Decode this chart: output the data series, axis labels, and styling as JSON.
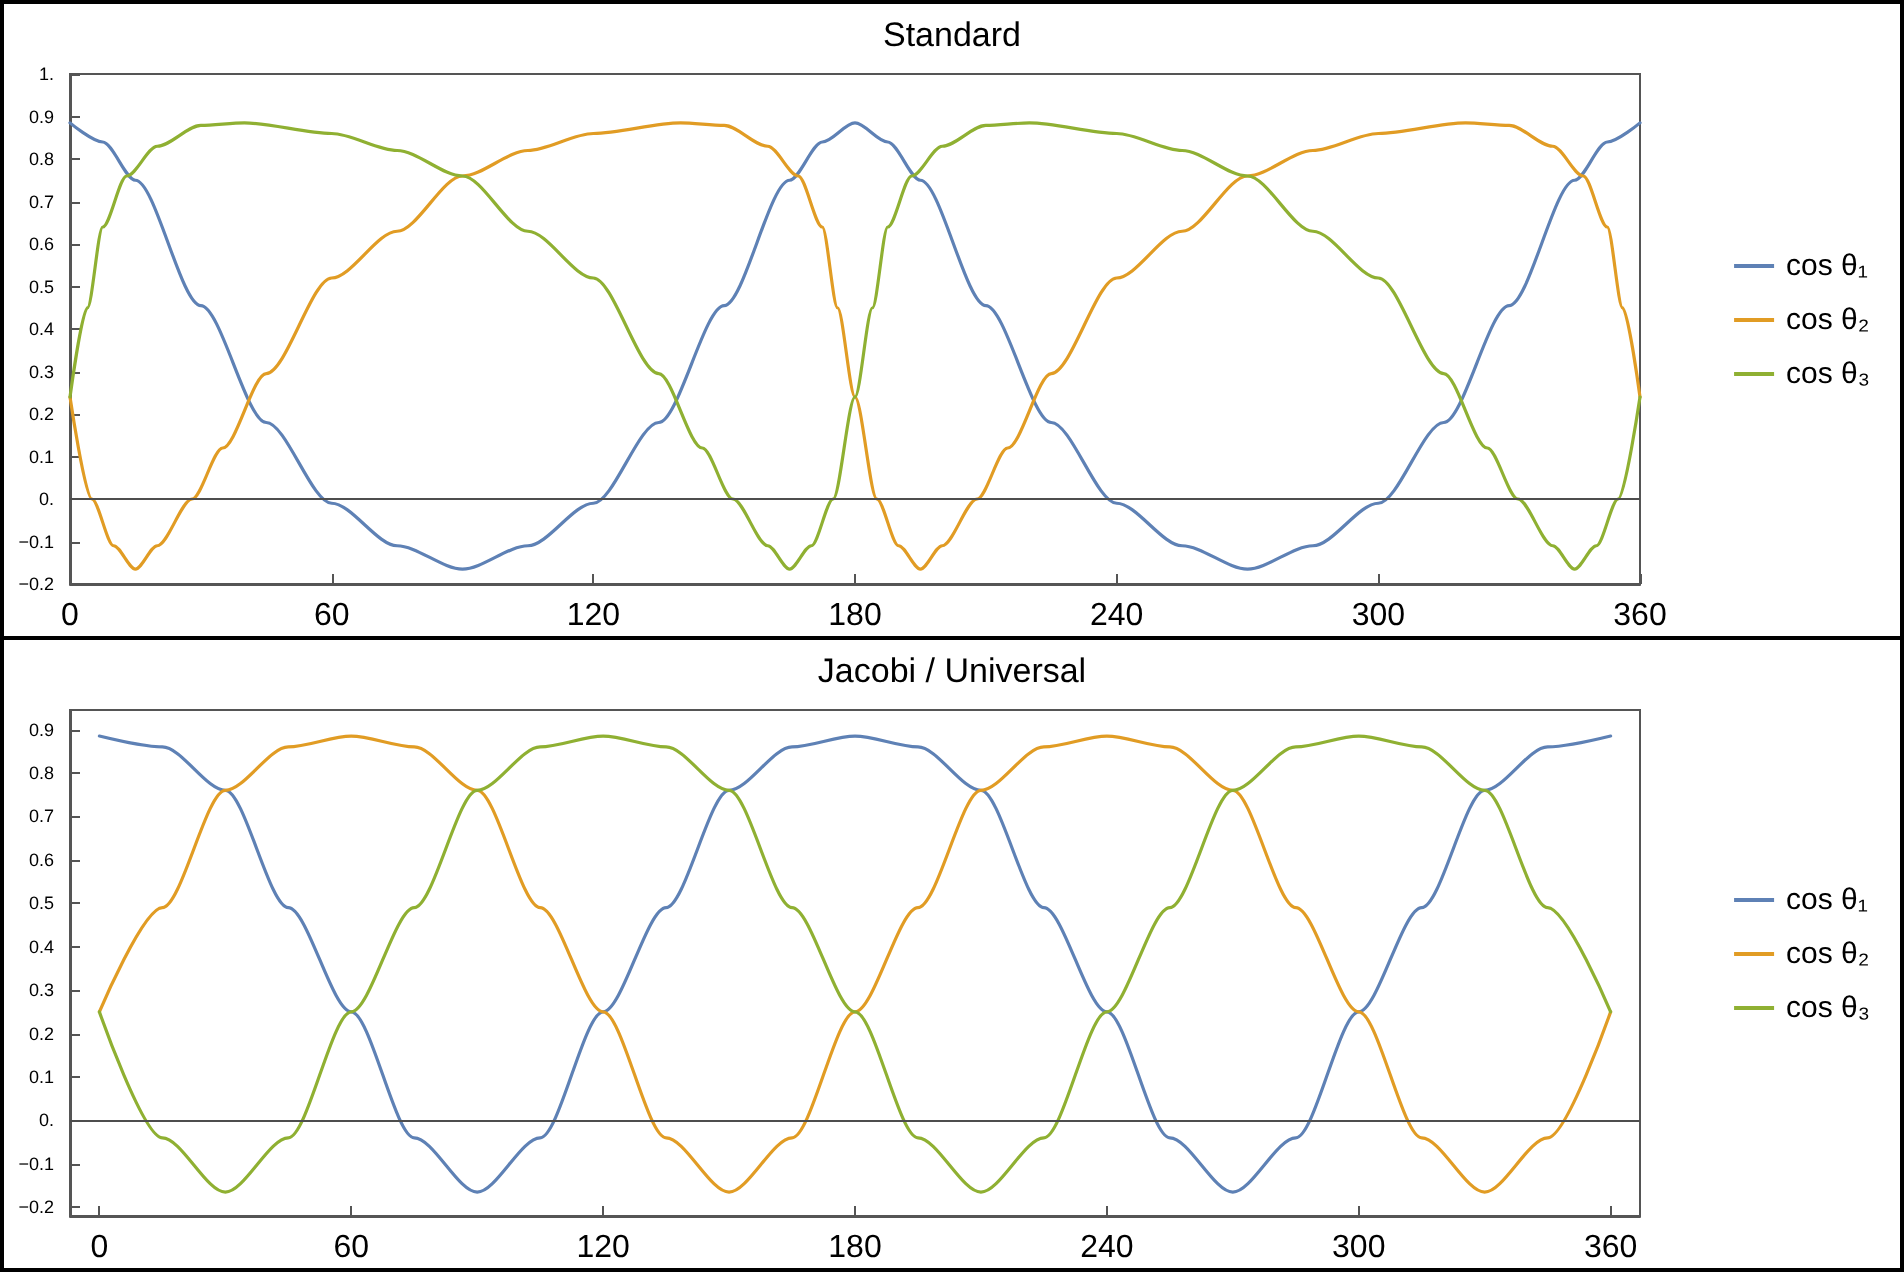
{
  "chart_data": [
    {
      "type": "line",
      "title": "Standard",
      "legend": "right",
      "xlim": [
        0,
        360
      ],
      "xticks": [
        0,
        60,
        120,
        180,
        240,
        300,
        360
      ],
      "ylim": [
        -0.2,
        1
      ],
      "yticks": [
        {
          "value": -0.2,
          "label": "−0.2"
        },
        {
          "value": -0.1,
          "label": "−0.1"
        },
        {
          "value": 0,
          "label": "0."
        },
        0.1,
        0.2,
        0.3,
        0.4,
        0.5,
        0.6,
        0.7,
        0.8,
        0.9,
        {
          "value": 1,
          "label": "1."
        }
      ],
      "ref_lines": [
        {
          "axis": "y",
          "value": 0,
          "color": "#4d4d4d"
        }
      ],
      "series": [
        {
          "name": "cos θ₁",
          "color": "#5e81b5",
          "x": [
            0,
            7.5,
            15,
            30,
            45,
            60,
            75,
            90,
            105,
            120,
            135,
            150,
            165,
            172.5,
            180,
            187.5,
            195,
            210,
            225,
            240,
            255,
            270,
            285,
            300,
            315,
            330,
            345,
            352.5,
            360
          ],
          "values": [
            0.885,
            0.84,
            0.75,
            0.455,
            0.18,
            -0.01,
            -0.11,
            -0.165,
            -0.11,
            -0.01,
            0.18,
            0.455,
            0.75,
            0.84,
            0.885,
            0.84,
            0.75,
            0.455,
            0.18,
            -0.01,
            -0.11,
            -0.165,
            -0.11,
            -0.01,
            0.18,
            0.455,
            0.75,
            0.84,
            0.885
          ]
        },
        {
          "name": "cos θ₂",
          "color": "#e19c24",
          "x": [
            0,
            5,
            10,
            15,
            20,
            28,
            35,
            45,
            60,
            75,
            90,
            105,
            120,
            140,
            150,
            160,
            167,
            172.5,
            176,
            180,
            185,
            190,
            195,
            200,
            208,
            215,
            225,
            240,
            255,
            270,
            285,
            300,
            320,
            330,
            340,
            347,
            352.5,
            356,
            360
          ],
          "values": [
            0.24,
            0,
            -0.11,
            -0.165,
            -0.11,
            0,
            0.12,
            0.295,
            0.52,
            0.63,
            0.76,
            0.82,
            0.86,
            0.885,
            0.879,
            0.83,
            0.76,
            0.64,
            0.45,
            0.24,
            0,
            -0.11,
            -0.165,
            -0.11,
            0,
            0.12,
            0.295,
            0.52,
            0.63,
            0.76,
            0.82,
            0.86,
            0.885,
            0.879,
            0.83,
            0.76,
            0.64,
            0.45,
            0.24
          ]
        },
        {
          "name": "cos θ₃",
          "color": "#8fb032",
          "x": [
            0,
            4,
            7.5,
            13,
            20,
            30,
            40,
            60,
            75,
            90,
            105,
            120,
            135,
            145,
            152,
            160,
            165,
            170,
            175,
            180,
            184,
            187.5,
            193,
            200,
            210,
            220,
            240,
            255,
            270,
            285,
            300,
            315,
            325,
            332,
            340,
            345,
            350,
            355,
            360
          ],
          "values": [
            0.24,
            0.45,
            0.64,
            0.76,
            0.83,
            0.879,
            0.885,
            0.86,
            0.82,
            0.76,
            0.63,
            0.52,
            0.295,
            0.12,
            0,
            -0.11,
            -0.165,
            -0.11,
            0,
            0.24,
            0.45,
            0.64,
            0.76,
            0.83,
            0.879,
            0.885,
            0.86,
            0.82,
            0.76,
            0.63,
            0.52,
            0.295,
            0.12,
            0,
            -0.11,
            -0.165,
            -0.11,
            0,
            0.24
          ]
        }
      ]
    },
    {
      "type": "line",
      "title": "Jacobi / Universal",
      "legend": "right",
      "xlim": [
        -7,
        367
      ],
      "xticks": [
        0,
        60,
        120,
        180,
        240,
        300,
        360
      ],
      "ylim": [
        -0.22,
        0.945
      ],
      "yticks": [
        {
          "value": -0.2,
          "label": "−0.2"
        },
        {
          "value": -0.1,
          "label": "−0.1"
        },
        {
          "value": 0,
          "label": "0."
        },
        0.1,
        0.2,
        0.3,
        0.4,
        0.5,
        0.6,
        0.7,
        0.8,
        0.9
      ],
      "ref_lines": [
        {
          "axis": "y",
          "value": 0,
          "color": "#4d4d4d"
        }
      ],
      "series": [
        {
          "name": "cos θ₁",
          "color": "#5e81b5",
          "x": [
            0,
            15,
            30,
            45,
            60,
            75,
            90,
            105,
            120,
            135,
            150,
            165,
            180,
            195,
            210,
            225,
            240,
            255,
            270,
            285,
            300,
            315,
            330,
            345,
            360
          ],
          "values": [
            0.885,
            0.86,
            0.76,
            0.49,
            0.25,
            -0.04,
            -0.165,
            -0.04,
            0.25,
            0.49,
            0.76,
            0.86,
            0.885,
            0.86,
            0.76,
            0.49,
            0.25,
            -0.04,
            -0.165,
            -0.04,
            0.25,
            0.49,
            0.76,
            0.86,
            0.885
          ]
        },
        {
          "name": "cos θ₂",
          "color": "#e19c24",
          "x": [
            0,
            15,
            30,
            45,
            60,
            75,
            90,
            105,
            120,
            135,
            150,
            165,
            180,
            195,
            210,
            225,
            240,
            255,
            270,
            285,
            300,
            315,
            330,
            345,
            360
          ],
          "values": [
            0.25,
            0.49,
            0.76,
            0.86,
            0.885,
            0.86,
            0.76,
            0.49,
            0.25,
            -0.04,
            -0.165,
            -0.04,
            0.25,
            0.49,
            0.76,
            0.86,
            0.885,
            0.86,
            0.76,
            0.49,
            0.25,
            -0.04,
            -0.165,
            -0.04,
            0.25
          ]
        },
        {
          "name": "cos θ₃",
          "color": "#8fb032",
          "x": [
            0,
            15,
            30,
            45,
            60,
            75,
            90,
            105,
            120,
            135,
            150,
            165,
            180,
            195,
            210,
            225,
            240,
            255,
            270,
            285,
            300,
            315,
            330,
            345,
            360
          ],
          "values": [
            0.25,
            -0.04,
            -0.165,
            -0.04,
            0.25,
            0.49,
            0.76,
            0.86,
            0.885,
            0.86,
            0.76,
            0.49,
            0.25,
            -0.04,
            -0.165,
            -0.04,
            0.25,
            0.49,
            0.76,
            0.86,
            0.885,
            0.86,
            0.76,
            0.49,
            0.25
          ]
        }
      ]
    }
  ]
}
